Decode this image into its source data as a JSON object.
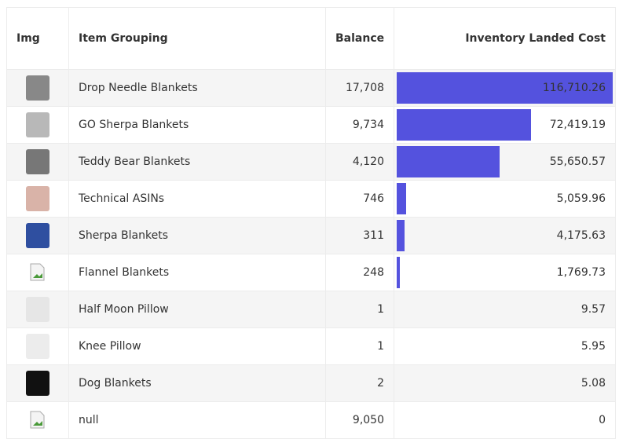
{
  "headers": {
    "img": "Img",
    "grouping": "Item Grouping",
    "balance": "Balance",
    "cost": "Inventory Landed Cost"
  },
  "bar_color": "#5452de",
  "cost_max": 116710.26,
  "rows": [
    {
      "icon": "drop-needle-thumb",
      "thumb_color": "#888888",
      "grouping": "Drop Needle Blankets",
      "balance": "17,708",
      "cost": "116,710.26",
      "cost_value": 116710.26
    },
    {
      "icon": "go-sherpa-thumb",
      "thumb_color": "#b8b8b8",
      "grouping": "GO Sherpa Blankets",
      "balance": "9,734",
      "cost": "72,419.19",
      "cost_value": 72419.19
    },
    {
      "icon": "teddy-bear-thumb",
      "thumb_color": "#777777",
      "grouping": "Teddy Bear Blankets",
      "balance": "4,120",
      "cost": "55,650.57",
      "cost_value": 55650.57
    },
    {
      "icon": "technical-asins-thumb",
      "thumb_color": "#d9b3a8",
      "grouping": "Technical ASINs",
      "balance": "746",
      "cost": "5,059.96",
      "cost_value": 5059.96
    },
    {
      "icon": "sherpa-thumb",
      "thumb_color": "#2f4fa0",
      "grouping": "Sherpa Blankets",
      "balance": "311",
      "cost": "4,175.63",
      "cost_value": 4175.63
    },
    {
      "icon": "broken-image-icon",
      "thumb_color": "",
      "grouping": "Flannel Blankets",
      "balance": "248",
      "cost": "1,769.73",
      "cost_value": 1769.73
    },
    {
      "icon": "half-moon-pillow-thumb",
      "thumb_color": "#e6e6e6",
      "grouping": "Half Moon Pillow",
      "balance": "1",
      "cost": "9.57",
      "cost_value": 9.57
    },
    {
      "icon": "knee-pillow-thumb",
      "thumb_color": "#ececec",
      "grouping": "Knee Pillow",
      "balance": "1",
      "cost": "5.95",
      "cost_value": 5.95
    },
    {
      "icon": "dog-blanket-thumb",
      "thumb_color": "#111111",
      "grouping": "Dog Blankets",
      "balance": "2",
      "cost": "5.08",
      "cost_value": 5.08
    },
    {
      "icon": "broken-image-icon",
      "thumb_color": "",
      "grouping": "null",
      "balance": "9,050",
      "cost": "0",
      "cost_value": 0
    }
  ]
}
